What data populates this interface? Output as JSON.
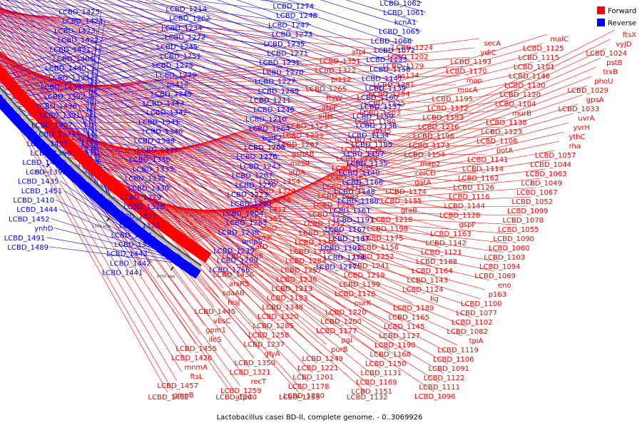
{
  "legend": [
    {
      "label": "Forward",
      "color": "#ff0000"
    },
    {
      "label": "Reverse",
      "color": "#0000ff"
    }
  ],
  "caption": "Lactobacillus casei BD-II, complete genome. - 0..3069926",
  "ticks": [
    "1050 kbp",
    "1100 kbp",
    "1150 kbp",
    "1200 kbp",
    "1250 kbp",
    "1300 kbp",
    "1350 kbp",
    "1400 kbp"
  ],
  "reverse_genes": [
    "LCBD_1062",
    "LCBD_1061",
    "kcnA1",
    "LCBD_1065",
    "LCBD_1066",
    "LCBD_1072",
    "LCBD_1133",
    "LCBD_1158",
    "LCBD_1147",
    "LCBD_1139",
    "LCBD_1160",
    "LCBD_1137",
    "LCBD_1159",
    "LCBD_1136",
    "LCBD_1134",
    "LCBD_1185",
    "LCBD_1157",
    "LCBD_1135",
    "LCBD_1140",
    "LCBD_1166",
    "LCBD_1148",
    "LCBD_1186",
    "LCBD_1161",
    "LCBD_1191",
    "LCBD_1167",
    "LCBD_1187",
    "LCBD_1192",
    "LCBD_1278",
    "LCBD_1277",
    "LCBD_1274",
    "LCBD_1248",
    "LCBD_1247",
    "LCBD_1273",
    "LCBD_1235",
    "LCBD_1271",
    "LCBD_1231",
    "LCBD_1270",
    "LCBD_1227",
    "LCBD_1269",
    "LCBD_1211",
    "LCBD_1246",
    "LCBD_1210",
    "LCBD_1264",
    "bglF2",
    "LCBD_1208",
    "LCBD_1276",
    "LCBD_1243",
    "LCBD_1207",
    "LCBD_1250",
    "LCBD_1223",
    "LCBD_1230",
    "LCBD_1204",
    "LCBD_1263",
    "LCBD_1238",
    "ampS",
    "LCBD_1239",
    "LCBD_1209",
    "LCBD_1266",
    "LCBD_1214",
    "LCBD_1262",
    "LCBD_1234",
    "LCBD_1272",
    "LCBD_1245",
    "LCBD_1251",
    "LCBD_1275",
    "LCBD_1279",
    "ps412",
    "LCBD_1349",
    "LCBD_1343",
    "LCBD_1342",
    "LCBD_1341",
    "LCBD_1340",
    "LCBD_1338",
    "LCBD_1337",
    "LCBD_1336",
    "LCBD_1333",
    "LCBD_1332",
    "LCBD_1330",
    "LCBD_1329",
    "LCBD_1328",
    "LCBD_1327",
    "LCBD_1326",
    "LCBD_1344",
    "LCBD_1352",
    "LCBD_1443",
    "LCBD_1442",
    "LCBD_1441",
    "LCBD_1425",
    "LCBD_1424",
    "LCBD_1423",
    "LCBD_1422",
    "LCBD_1421",
    "LCBD_1406",
    "LCBD_1440",
    "LCBD_1395",
    "LCBD_1439",
    "LCBD_1392",
    "LCBD_1438",
    "LCBD_1391",
    "LCBD_1407",
    "LCBD_1375",
    "LCBD_1437",
    "LCBD_1390",
    "LCBD_1405",
    "LCBD_1393",
    "LCBD_1435",
    "LCBD_1451",
    "LCBD_1410",
    "LCBD_1444",
    "LCBD_1452",
    "ynhD",
    "LCBD_1491",
    "LCBD_1489"
  ],
  "forward_genes": [
    "ftsX",
    "vyjD",
    "LCBD_1024",
    "pstB",
    "trxB",
    "phoU",
    "LCBD_1029",
    "gpsA",
    "LCBD_1033",
    "uvrA",
    "yvrH",
    "ythC",
    "rha",
    "LCBD_1057",
    "LCBD_1044",
    "LCBD_1063",
    "LCBD_1049",
    "LCBD_1067",
    "LCBD_1052",
    "LCBD_1099",
    "LCBD_1078",
    "LCBD_1055",
    "LCBD_1090",
    "LCBD_1060",
    "LCBD_1103",
    "LCBD_1094",
    "LCBD_1069",
    "eno",
    "p163",
    "LCBD_1100",
    "LCBD_1077",
    "LCBD_1102",
    "LCBD_1082",
    "tpiA",
    "LCBD_1119",
    "LCBD_1106",
    "LCBD_1091",
    "LCBD_1122",
    "LCBD_1111",
    "LCBD_1096",
    "malC",
    "LCBD_1125",
    "LCBD_1115",
    "LCBD_1101",
    "LCBD_1146",
    "LCBD_1130",
    "LCBD_1120",
    "LCBD_1104",
    "murB",
    "LCBD_1138",
    "LCBD_1123",
    "LCBD_1108",
    "potA",
    "LCBD_1141",
    "LCBD_1114",
    "LCBD_1162",
    "LCBD_1126",
    "LCBD_1116",
    "LCBD_1144",
    "LCBD_1128",
    "gspF",
    "LCBD_1163",
    "LCBD_1142",
    "LCBD_1121",
    "LCBD_1188",
    "LCBD_1164",
    "LCBD_1143",
    "LCBD_1124",
    "lig",
    "LCBD_1189",
    "LCBD_1165",
    "LCBD_1145",
    "LCBD_1127",
    "LCBD_1190",
    "LCBD_1168",
    "LCBD_1150",
    "LCBD_1131",
    "LCBD_1169",
    "LCBD_1151",
    "LCBD_1132",
    "secA",
    "ydiC",
    "LCBD_1193",
    "LCBD_1170",
    "map",
    "mocA",
    "LCBD_1195",
    "LCBD_1172",
    "LCBD_1153",
    "LCBD_1216",
    "LCBD_1196",
    "LCBD_1173",
    "LCBD_1154",
    "map2",
    "celCD",
    "gatA",
    "LCBD_1174",
    "LCBD_1155",
    "gtaB",
    "LCBD_1218",
    "LCBD_1198",
    "LCBD_1175",
    "LCBD_1156",
    "LCBD_1252",
    "LCBD_1241",
    "LCBD_1219",
    "LCBD_1199",
    "LCBD_1176",
    "purK",
    "LCBD_1220",
    "LCBD_1200",
    "LCBD_1177",
    "pgi",
    "purB",
    "LCBD_1249",
    "LCBD_1221",
    "LCBD_1201",
    "LCBD_1178",
    "LCBD_1280",
    "LCBD_1253",
    "LCBD_1224",
    "LCBD_1202",
    "LCBD_1179",
    "ps134",
    "LCBD_1281",
    "LCBD_1254",
    "LCBD_1225",
    "LCBD_1203",
    "LCBD_1180",
    "p035",
    "LCBD_1282",
    "LCBD_1255",
    "LCBD_1229",
    "LCBD_1205",
    "LCBD_1181",
    "LCBD_1318",
    "LCBD_1283",
    "LCBD_1256",
    "LCBD_1232",
    "LCBD_1212",
    "LCBD_1182",
    "LCBD_1346",
    "LCBD_1319",
    "LCBD_1284",
    "LCBD_1257",
    "LCBD_1236",
    "LCBD_1213",
    "LCBD_1183",
    "LCBD_1348",
    "LCBD_1320",
    "LCBD_1285",
    "LCBD_1258",
    "LCBD_1237",
    "glyA",
    "LCBD_1350",
    "LCBD_1321",
    "recT",
    "LCBD_1259",
    "LCBD_1240",
    "atpC",
    "atpI",
    "LCBD_1351",
    "LCBD_1322",
    "pi112",
    "LCBD_1265",
    "ftsW",
    "atpF",
    "kitH",
    "LCBD_1323",
    "LCBD_1299",
    "LCBD_1267",
    "gshAB",
    "metN",
    "atpA",
    "LCBD_1354",
    "LCBD_1324",
    "LCBD_1286",
    "LCBD_1411",
    "LCBD_1385",
    "atpG",
    "hemK",
    "catD",
    "LCBD_1388",
    "mreB",
    "LCBD_1436",
    "arsR5",
    "sdaAB",
    "hisJ",
    "LCBD_1445",
    "vbsC",
    "gpm1",
    "ileS",
    "LCBD_1455",
    "LCBD_1426",
    "mnmA",
    "ftsL",
    "LCBD_1457",
    "gmpB",
    "LCBD_1482"
  ]
}
